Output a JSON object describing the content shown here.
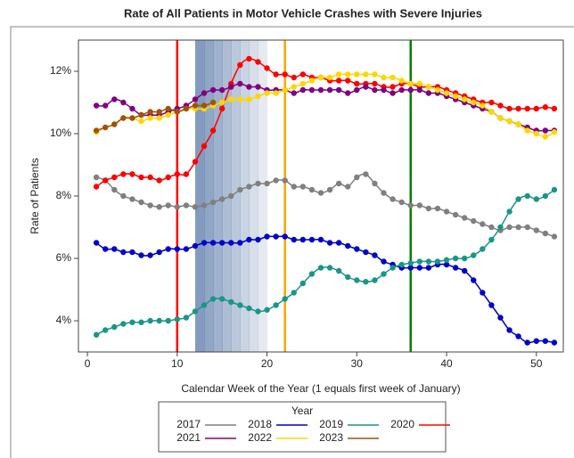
{
  "chart_data": {
    "type": "line",
    "title": "Rate of All Patients in Motor Vehicle Crashes with Severe Injuries",
    "xlabel": "Calendar Week of the Year (1 equals first week of January)",
    "ylabel": "Rate of Patients",
    "legend_title": "Year",
    "xlim": [
      -1,
      53
    ],
    "xticks": [
      0,
      10,
      20,
      30,
      40,
      50
    ],
    "ylim": [
      3,
      13
    ],
    "yticks": [
      {
        "value": 4,
        "label": "4%"
      },
      {
        "value": 6,
        "label": "6%"
      },
      {
        "value": 8,
        "label": "8%"
      },
      {
        "value": 10,
        "label": "10%"
      },
      {
        "value": 12,
        "label": "12%"
      }
    ],
    "vlines": [
      {
        "x": 10,
        "color": "#ff0000"
      },
      {
        "x": 22,
        "color": "#ffa500"
      },
      {
        "x": 36,
        "color": "#008000"
      }
    ],
    "shade": [
      12,
      20
    ],
    "x": [
      1,
      2,
      3,
      4,
      5,
      6,
      7,
      8,
      9,
      10,
      11,
      12,
      13,
      14,
      15,
      16,
      17,
      18,
      19,
      20,
      21,
      22,
      23,
      24,
      25,
      26,
      27,
      28,
      29,
      30,
      31,
      32,
      33,
      34,
      35,
      36,
      37,
      38,
      39,
      40,
      41,
      42,
      43,
      44,
      45,
      46,
      47,
      48,
      49,
      50,
      51,
      52
    ],
    "series": [
      {
        "name": "2017",
        "color": "#808080",
        "values": [
          8.6,
          8.5,
          8.2,
          8.0,
          7.9,
          7.8,
          7.7,
          7.65,
          7.7,
          7.65,
          7.7,
          7.65,
          7.7,
          7.8,
          7.9,
          8.0,
          8.2,
          8.3,
          8.4,
          8.4,
          8.5,
          8.5,
          8.3,
          8.3,
          8.2,
          8.1,
          8.2,
          8.4,
          8.3,
          8.6,
          8.7,
          8.4,
          8.1,
          7.9,
          7.8,
          7.7,
          7.7,
          7.6,
          7.6,
          7.5,
          7.4,
          7.3,
          7.2,
          7.1,
          7.0,
          6.9,
          7.0,
          7.0,
          7.0,
          6.9,
          6.8,
          6.7
        ]
      },
      {
        "name": "2018",
        "color": "#0000cc",
        "values": [
          6.5,
          6.3,
          6.3,
          6.2,
          6.2,
          6.1,
          6.1,
          6.2,
          6.3,
          6.3,
          6.3,
          6.4,
          6.5,
          6.5,
          6.5,
          6.5,
          6.5,
          6.6,
          6.6,
          6.7,
          6.7,
          6.7,
          6.6,
          6.6,
          6.6,
          6.6,
          6.5,
          6.5,
          6.4,
          6.3,
          6.2,
          6.1,
          5.9,
          5.8,
          5.7,
          5.7,
          5.7,
          5.7,
          5.8,
          5.8,
          5.7,
          5.6,
          5.3,
          4.9,
          4.5,
          4.1,
          3.7,
          3.5,
          3.3,
          3.35,
          3.35,
          3.3
        ]
      },
      {
        "name": "2019",
        "color": "#1a9688",
        "values": [
          3.55,
          3.7,
          3.8,
          3.9,
          3.95,
          3.95,
          4.0,
          4.0,
          4.0,
          4.05,
          4.1,
          4.3,
          4.5,
          4.7,
          4.7,
          4.6,
          4.5,
          4.4,
          4.3,
          4.35,
          4.5,
          4.7,
          4.9,
          5.2,
          5.5,
          5.7,
          5.7,
          5.6,
          5.4,
          5.3,
          5.25,
          5.3,
          5.5,
          5.7,
          5.8,
          5.85,
          5.9,
          5.9,
          5.9,
          5.95,
          6.0,
          6.0,
          6.1,
          6.3,
          6.6,
          7.0,
          7.5,
          7.9,
          8.0,
          7.9,
          8.0,
          8.2
        ]
      },
      {
        "name": "2020",
        "color": "#ff0000",
        "values": [
          8.3,
          8.5,
          8.6,
          8.7,
          8.7,
          8.6,
          8.6,
          8.5,
          8.6,
          8.7,
          8.7,
          9.1,
          9.6,
          10.1,
          10.8,
          11.6,
          12.2,
          12.4,
          12.3,
          12.1,
          11.9,
          11.9,
          11.8,
          11.9,
          11.8,
          11.8,
          11.7,
          11.7,
          11.7,
          11.6,
          11.6,
          11.6,
          11.5,
          11.5,
          11.6,
          11.6,
          11.5,
          11.5,
          11.5,
          11.4,
          11.3,
          11.2,
          11.1,
          11.0,
          11.0,
          10.9,
          10.8,
          10.8,
          10.8,
          10.8,
          10.85,
          10.8
        ]
      },
      {
        "name": "2021",
        "color": "#800080",
        "values": [
          10.9,
          10.9,
          11.1,
          11.0,
          10.8,
          10.6,
          10.6,
          10.6,
          10.7,
          10.8,
          10.9,
          11.1,
          11.3,
          11.4,
          11.4,
          11.5,
          11.6,
          11.5,
          11.5,
          11.4,
          11.4,
          11.4,
          11.3,
          11.4,
          11.4,
          11.4,
          11.4,
          11.4,
          11.3,
          11.4,
          11.5,
          11.4,
          11.4,
          11.3,
          11.4,
          11.4,
          11.4,
          11.3,
          11.3,
          11.2,
          11.1,
          11.0,
          10.9,
          10.8,
          10.7,
          10.5,
          10.4,
          10.3,
          10.2,
          10.1,
          10.1,
          10.1
        ]
      },
      {
        "name": "2022",
        "color": "#ffd700",
        "values": [
          10.05,
          10.2,
          10.3,
          10.5,
          10.5,
          10.4,
          10.5,
          10.5,
          10.6,
          10.7,
          10.8,
          10.8,
          10.8,
          10.9,
          11.0,
          11.1,
          11.1,
          11.1,
          11.2,
          11.3,
          11.3,
          11.4,
          11.5,
          11.6,
          11.7,
          11.8,
          11.8,
          11.9,
          11.9,
          11.9,
          11.9,
          11.9,
          11.8,
          11.8,
          11.7,
          11.6,
          11.6,
          11.5,
          11.4,
          11.3,
          11.2,
          11.1,
          11.0,
          10.9,
          10.7,
          10.5,
          10.4,
          10.3,
          10.1,
          10.0,
          9.9,
          10.05
        ]
      },
      {
        "name": "2023",
        "color": "#a0520a",
        "values": [
          10.1,
          10.2,
          10.3,
          10.5,
          10.5,
          10.6,
          10.7,
          10.7,
          10.8,
          10.7,
          10.8,
          10.9,
          10.9,
          11.0,
          null,
          null,
          null,
          null,
          null,
          null,
          null,
          null,
          null,
          null,
          null,
          null,
          null,
          null,
          null,
          null,
          null,
          null,
          null,
          null,
          null,
          null,
          null,
          null,
          null,
          null,
          null,
          null,
          null,
          null,
          null,
          null,
          null,
          null,
          null,
          null,
          null,
          null
        ]
      }
    ]
  }
}
